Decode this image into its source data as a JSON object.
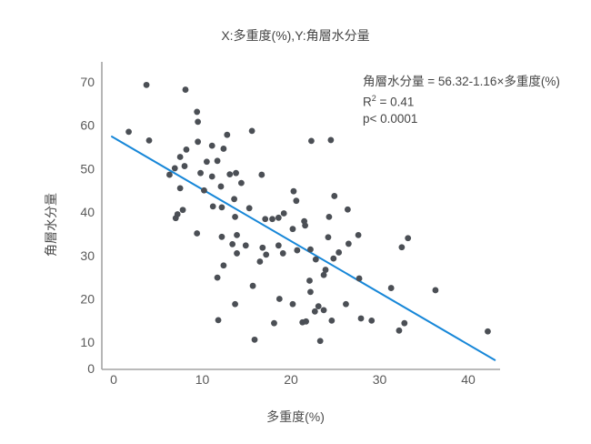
{
  "title": "X:多重度(%),Y:角層水分量",
  "annotation": {
    "equation": "角層水分量 = 56.32-1.16×多重度(%)",
    "r2_base": "R",
    "r2_sup": "2",
    "r2_rest": " = 0.41",
    "p_line": "p< 0.0001"
  },
  "chart_data": {
    "type": "scatter",
    "title": "X:多重度(%),Y:角層水分量",
    "xlabel": "多重度(%)",
    "ylabel": "角層水分量",
    "xlim": [
      0,
      44
    ],
    "ylim": [
      0,
      70
    ],
    "x_ticks": [
      0,
      10,
      20,
      30,
      40
    ],
    "y_ticks": [
      0,
      10,
      20,
      30,
      40,
      50,
      60,
      70
    ],
    "grid": false,
    "legend": "none",
    "regression_line": {
      "x1": -0.2,
      "y1": 57.4,
      "x2": 43.0,
      "y2": 5.9,
      "equation": "角層水分量 = 56.32 - 1.16 × 多重度(%)",
      "r_squared": 0.41,
      "p": "< 0.0001"
    },
    "points": [
      [
        3.7,
        69.3
      ],
      [
        8.1,
        68.2
      ],
      [
        9.4,
        63.1
      ],
      [
        9.5,
        60.8
      ],
      [
        1.7,
        58.5
      ],
      [
        4.0,
        56.5
      ],
      [
        12.8,
        57.8
      ],
      [
        9.5,
        56.2
      ],
      [
        11.1,
        55.3
      ],
      [
        8.2,
        54.4
      ],
      [
        12.4,
        54.6
      ],
      [
        7.5,
        52.7
      ],
      [
        10.5,
        51.6
      ],
      [
        11.7,
        51.8
      ],
      [
        8.0,
        50.6
      ],
      [
        6.9,
        50.1
      ],
      [
        6.3,
        48.6
      ],
      [
        9.8,
        49.0
      ],
      [
        11.1,
        48.2
      ],
      [
        13.1,
        48.7
      ],
      [
        13.8,
        49.0
      ],
      [
        7.5,
        45.5
      ],
      [
        10.2,
        45.0
      ],
      [
        12.1,
        45.9
      ],
      [
        13.6,
        43.0
      ],
      [
        11.2,
        41.3
      ],
      [
        12.2,
        41.1
      ],
      [
        7.2,
        39.5
      ],
      [
        7.8,
        40.5
      ],
      [
        7.0,
        38.6
      ],
      [
        13.7,
        38.9
      ],
      [
        15.6,
        58.7
      ],
      [
        22.3,
        56.4
      ],
      [
        24.5,
        56.6
      ],
      [
        16.7,
        48.6
      ],
      [
        14.4,
        46.7
      ],
      [
        20.3,
        44.8
      ],
      [
        20.6,
        42.6
      ],
      [
        15.3,
        40.9
      ],
      [
        24.9,
        43.7
      ],
      [
        19.2,
        39.7
      ],
      [
        24.3,
        38.9
      ],
      [
        26.4,
        40.6
      ],
      [
        18.6,
        38.7
      ],
      [
        17.9,
        38.4
      ],
      [
        17.1,
        38.4
      ],
      [
        21.5,
        37.9
      ],
      [
        9.4,
        35.1
      ],
      [
        12.2,
        34.3
      ],
      [
        13.4,
        32.6
      ],
      [
        12.4,
        27.7
      ],
      [
        11.7,
        24.9
      ],
      [
        13.7,
        18.8
      ],
      [
        11.8,
        15.1
      ],
      [
        20.2,
        36.1
      ],
      [
        21.6,
        36.9
      ],
      [
        24.2,
        34.2
      ],
      [
        27.6,
        34.7
      ],
      [
        26.5,
        32.7
      ],
      [
        13.9,
        34.7
      ],
      [
        14.9,
        32.3
      ],
      [
        13.9,
        30.5
      ],
      [
        16.8,
        31.8
      ],
      [
        17.2,
        30.2
      ],
      [
        18.6,
        32.3
      ],
      [
        19.1,
        30.5
      ],
      [
        20.7,
        31.2
      ],
      [
        22.2,
        31.4
      ],
      [
        22.8,
        29.1
      ],
      [
        24.8,
        29.3
      ],
      [
        25.4,
        30.7
      ],
      [
        16.5,
        28.6
      ],
      [
        23.9,
        26.7
      ],
      [
        23.7,
        25.5
      ],
      [
        27.7,
        24.7
      ],
      [
        15.7,
        23.0
      ],
      [
        22.1,
        24.2
      ],
      [
        22.2,
        21.6
      ],
      [
        18.7,
        20.0
      ],
      [
        20.2,
        18.8
      ],
      [
        23.1,
        18.3
      ],
      [
        22.7,
        17.1
      ],
      [
        23.7,
        17.4
      ],
      [
        26.2,
        18.8
      ],
      [
        24.6,
        15.0
      ],
      [
        27.9,
        15.5
      ],
      [
        18.1,
        14.4
      ],
      [
        21.3,
        14.6
      ],
      [
        21.7,
        14.8
      ],
      [
        15.9,
        10.6
      ],
      [
        23.3,
        10.3
      ],
      [
        33.2,
        34.0
      ],
      [
        32.5,
        31.9
      ],
      [
        31.3,
        22.5
      ],
      [
        36.3,
        22.0
      ],
      [
        29.1,
        15.0
      ],
      [
        32.8,
        14.4
      ],
      [
        32.2,
        12.7
      ],
      [
        42.2,
        12.5
      ]
    ],
    "colors": {
      "point": "#4b4f55",
      "line": "#1787d8",
      "axis": "#a3a3a3",
      "tick": "#595959",
      "text": "#454545"
    }
  }
}
